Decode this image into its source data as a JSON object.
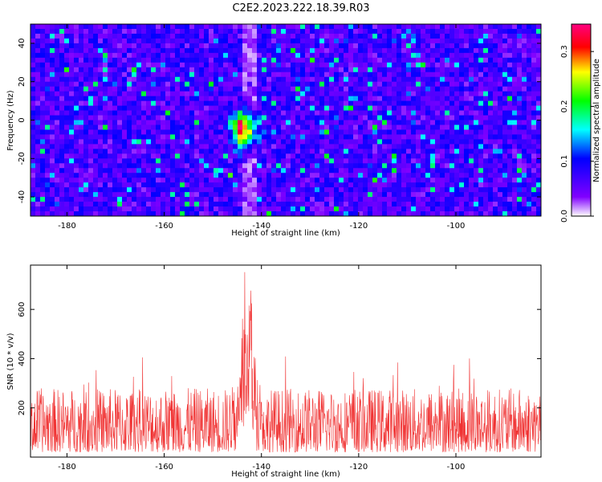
{
  "title": "C2E2.2023.222.18.39.R03",
  "colors": {
    "snr_line": "#f03232",
    "colormap": [
      "#ffffff",
      "#8000ff",
      "#0000ff",
      "#00ffff",
      "#00ff00",
      "#ffff00",
      "#ff0000",
      "#ff0080"
    ]
  },
  "chart_data": [
    {
      "type": "heatmap",
      "title": "C2E2.2023.222.18.39.R03",
      "xlabel": "Height of straight line (km)",
      "ylabel": "Frequency (Hz)",
      "xlim": [
        -187.5,
        -82.5
      ],
      "ylim": [
        -50,
        50
      ],
      "x_ticks": [
        -180,
        -160,
        -140,
        -120,
        -100
      ],
      "x_tick_labels": [
        "-180",
        "-160",
        "-140",
        "-120",
        "-100"
      ],
      "y_ticks": [
        -40,
        -20,
        0,
        20,
        40
      ],
      "y_tick_labels": [
        "-40",
        "-20",
        "0",
        "20",
        "40"
      ],
      "colorbar": {
        "label": "Normalized spectral amplitude",
        "range": [
          0,
          0.35
        ],
        "ticks": [
          0.0,
          0.1,
          0.2,
          0.3
        ],
        "tick_labels": [
          "0.0",
          "0.1",
          "0.2",
          "0.3"
        ]
      },
      "background_level": 0.07,
      "low_amplitude_bands_km": [
        -143.5,
        -140.5
      ],
      "peak": {
        "height_km": -143.5,
        "frequency_hz": -5,
        "amplitude": 0.33
      }
    },
    {
      "type": "line",
      "xlabel": "Height of straight line (km)",
      "ylabel": "SNR (10 * v/v)",
      "xlim": [
        -187.5,
        -82.5
      ],
      "ylim": [
        0,
        780
      ],
      "x_ticks": [
        -180,
        -160,
        -140,
        -120,
        -100
      ],
      "x_tick_labels": [
        "-180",
        "-160",
        "-140",
        "-120",
        "-100"
      ],
      "y_ticks": [
        200,
        400,
        600
      ],
      "y_tick_labels": [
        "200",
        "400",
        "600"
      ],
      "series": [
        {
          "baseline_min": 20,
          "baseline_mean": 130,
          "typical_max": 280,
          "peak_center_km": -143,
          "peak_value": 780
        }
      ]
    }
  ]
}
